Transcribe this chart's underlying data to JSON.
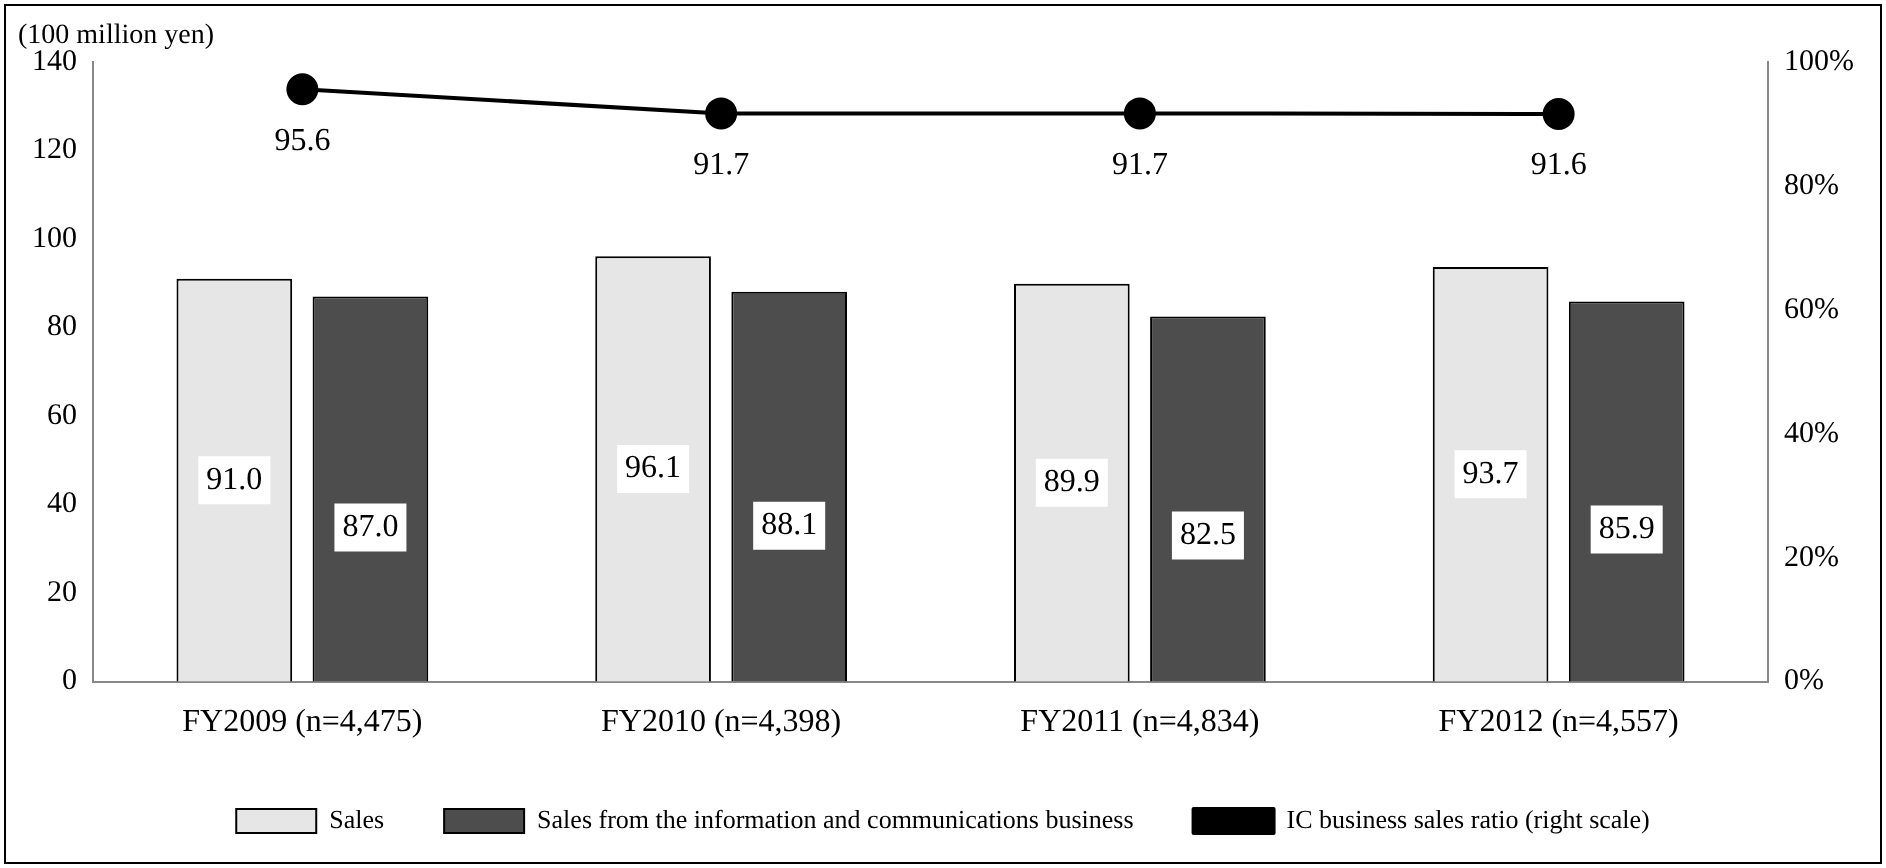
{
  "chart_data": {
    "type": "bar",
    "ylabel": "(100 million yen)",
    "categories": [
      "FY2009 (n=4,475)",
      "FY2010 (n=4,398)",
      "FY2011 (n=4,834)",
      "FY2012 (n=4,557)"
    ],
    "series": [
      {
        "name": "Sales",
        "color": "#e6e6e6",
        "values": [
          91.0,
          96.1,
          89.9,
          93.7
        ],
        "value_labels": [
          "91.0",
          "96.1",
          "89.9",
          "93.7"
        ]
      },
      {
        "name": "Sales from the information and communications business",
        "color": "#4d4d4d",
        "values": [
          87.0,
          88.1,
          82.5,
          85.9
        ],
        "value_labels": [
          "87.0",
          "88.1",
          "82.5",
          "85.9"
        ]
      },
      {
        "name": "IC business sales ratio (right scale)",
        "type": "line",
        "axis": "y2",
        "color": "#000000",
        "values": [
          95.6,
          91.7,
          91.7,
          91.6
        ],
        "value_labels": [
          "95.6",
          "91.7",
          "91.7",
          "91.6"
        ]
      }
    ],
    "ylim": [
      0,
      140
    ],
    "yticks": [
      0,
      20,
      40,
      60,
      80,
      100,
      120,
      140
    ],
    "y2lim": [
      0,
      100
    ],
    "y2ticks": [
      {
        "value": 0,
        "label": "0%"
      },
      {
        "value": 20,
        "label": "20%"
      },
      {
        "value": 40,
        "label": "40%"
      },
      {
        "value": 60,
        "label": "60%"
      },
      {
        "value": 80,
        "label": "80%"
      },
      {
        "value": 100,
        "label": "100%"
      }
    ],
    "legend": "bottom",
    "marker": "circle",
    "grid": false
  }
}
